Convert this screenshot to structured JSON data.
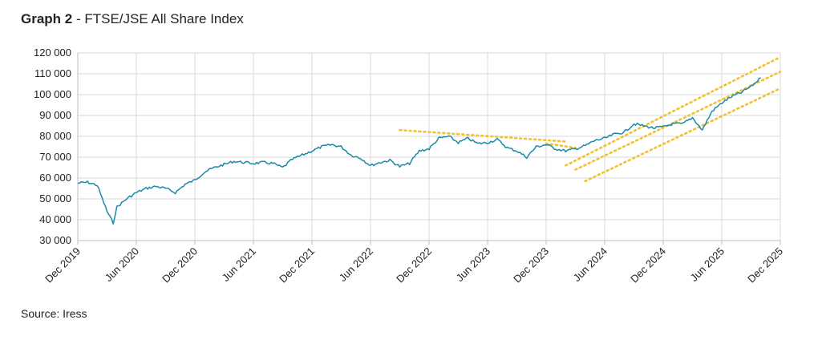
{
  "header": {
    "title_bold": "Graph 2",
    "title_sep": " - ",
    "title_rest": "FTSE/JSE All Share Index"
  },
  "footer": {
    "source": "Source: Iress"
  },
  "chart_data": {
    "type": "line",
    "title": "Graph 2 - FTSE/JSE All Share Index",
    "xlabel": "",
    "ylabel": "",
    "ylim": [
      30000,
      120000
    ],
    "xlim": [
      "2019-12",
      "2025-12"
    ],
    "y_ticks": [
      "30 000",
      "40 000",
      "50 000",
      "60 000",
      "70 000",
      "80 000",
      "90 000",
      "100 000",
      "110 000",
      "120 000"
    ],
    "y_tick_values": [
      30000,
      40000,
      50000,
      60000,
      70000,
      80000,
      90000,
      100000,
      110000,
      120000
    ],
    "x_ticks": [
      "Dec 2019",
      "Jun 2020",
      "Dec 2020",
      "Jun 2021",
      "Dec 2021",
      "Jun 2022",
      "Dec 2022",
      "Jun 2023",
      "Dec 2023",
      "Jun 2024",
      "Dec 2024",
      "Jun 2025",
      "Dec 2025"
    ],
    "x_tick_dates": [
      "2019-12",
      "2020-06",
      "2020-12",
      "2021-06",
      "2021-12",
      "2022-06",
      "2022-12",
      "2023-06",
      "2023-12",
      "2024-06",
      "2024-12",
      "2025-06",
      "2025-12"
    ],
    "grid": true,
    "series": [
      {
        "color": "#1a8aa6",
        "points": [
          [
            "2019-12",
            57500
          ],
          [
            "2020-01",
            58000
          ],
          [
            "2020-02",
            56500
          ],
          [
            "2020-03",
            44000
          ],
          [
            "2020-03-20",
            38500
          ],
          [
            "2020-04",
            46000
          ],
          [
            "2020-05",
            50000
          ],
          [
            "2020-06",
            53000
          ],
          [
            "2020-07",
            55000
          ],
          [
            "2020-08",
            56000
          ],
          [
            "2020-09",
            55000
          ],
          [
            "2020-10",
            53000
          ],
          [
            "2020-11",
            57000
          ],
          [
            "2020-12",
            59000
          ],
          [
            "2021-01",
            63000
          ],
          [
            "2021-02",
            65000
          ],
          [
            "2021-03",
            66500
          ],
          [
            "2021-04",
            68000
          ],
          [
            "2021-05",
            67500
          ],
          [
            "2021-06",
            67000
          ],
          [
            "2021-07",
            67500
          ],
          [
            "2021-08",
            67000
          ],
          [
            "2021-09",
            65000
          ],
          [
            "2021-10",
            69000
          ],
          [
            "2021-11",
            71000
          ],
          [
            "2021-12",
            73000
          ],
          [
            "2022-01",
            75000
          ],
          [
            "2022-02",
            76000
          ],
          [
            "2022-03",
            75000
          ],
          [
            "2022-04",
            71000
          ],
          [
            "2022-05",
            69500
          ],
          [
            "2022-06",
            66000
          ],
          [
            "2022-07",
            67500
          ],
          [
            "2022-08",
            68500
          ],
          [
            "2022-09",
            65500
          ],
          [
            "2022-10",
            67000
          ],
          [
            "2022-11",
            73000
          ],
          [
            "2022-12",
            74000
          ],
          [
            "2023-01",
            79000
          ],
          [
            "2023-02",
            80000
          ],
          [
            "2023-03",
            77000
          ],
          [
            "2023-04",
            79000
          ],
          [
            "2023-05",
            76500
          ],
          [
            "2023-06",
            77000
          ],
          [
            "2023-07",
            78500
          ],
          [
            "2023-08",
            74500
          ],
          [
            "2023-09",
            73000
          ],
          [
            "2023-10",
            70000
          ],
          [
            "2023-11",
            75000
          ],
          [
            "2023-12",
            76000
          ],
          [
            "2024-01",
            74000
          ],
          [
            "2024-02",
            73000
          ],
          [
            "2024-03",
            74000
          ],
          [
            "2024-04",
            75500
          ],
          [
            "2024-05",
            78000
          ],
          [
            "2024-06",
            79000
          ],
          [
            "2024-07",
            81000
          ],
          [
            "2024-08",
            82000
          ],
          [
            "2024-09",
            86000
          ],
          [
            "2024-10",
            85000
          ],
          [
            "2024-11",
            84000
          ],
          [
            "2024-12",
            84500
          ],
          [
            "2025-01",
            86000
          ],
          [
            "2025-02",
            86000
          ],
          [
            "2025-03",
            89000
          ],
          [
            "2025-04",
            83000
          ],
          [
            "2025-05",
            92000
          ],
          [
            "2025-06",
            96000
          ],
          [
            "2025-07",
            99000
          ],
          [
            "2025-08",
            101000
          ],
          [
            "2025-09",
            104000
          ],
          [
            "2025-10",
            108000
          ]
        ]
      }
    ],
    "trendlines": [
      {
        "color": "#f2c12e",
        "points": [
          [
            "2022-09",
            83000
          ],
          [
            "2024-02",
            77500
          ]
        ]
      },
      {
        "color": "#f2c12e",
        "points": [
          [
            "2023-12",
            76500
          ],
          [
            "2024-03",
            74500
          ]
        ]
      },
      {
        "color": "#f2c12e",
        "points": [
          [
            "2024-02",
            66000
          ],
          [
            "2025-12",
            118000
          ]
        ]
      },
      {
        "color": "#f2c12e",
        "points": [
          [
            "2024-03",
            64000
          ],
          [
            "2025-12",
            111000
          ]
        ]
      },
      {
        "color": "#f2c12e",
        "points": [
          [
            "2024-04",
            58500
          ],
          [
            "2025-12",
            103000
          ]
        ]
      }
    ]
  }
}
